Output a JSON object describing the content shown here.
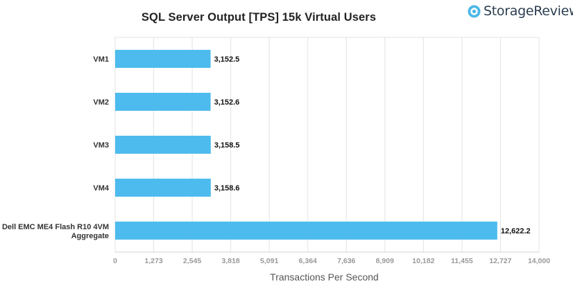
{
  "brand": {
    "name": "StorageReview",
    "accent": "#4db8e8"
  },
  "chart_data": {
    "type": "bar",
    "orientation": "horizontal",
    "title": "SQL Server Output [TPS] 15k Virtual Users",
    "xlabel": "Transactions Per Second",
    "ylabel": "",
    "categories": [
      "VM1",
      "VM2",
      "VM3",
      "VM4",
      "Dell EMC ME4 Flash R10 4VM Aggregate"
    ],
    "values": [
      3152.5,
      3152.6,
      3158.5,
      3158.6,
      12622.2
    ],
    "value_labels": [
      "3,152.5",
      "3,152.6",
      "3,158.5",
      "3,158.6",
      "12,622.2"
    ],
    "xlim": [
      0,
      14000
    ],
    "x_ticks": [
      0,
      1273,
      2545,
      3818,
      5091,
      6364,
      7636,
      8909,
      10182,
      11455,
      12727,
      14000
    ],
    "x_tick_labels": [
      "0",
      "1,273",
      "2,545",
      "3,818",
      "5,091",
      "6,364",
      "7,636",
      "8,909",
      "10,182",
      "11,455",
      "12,727",
      "14,000"
    ],
    "bar_color": "#4dbbed",
    "grid": true,
    "legend": "none"
  }
}
